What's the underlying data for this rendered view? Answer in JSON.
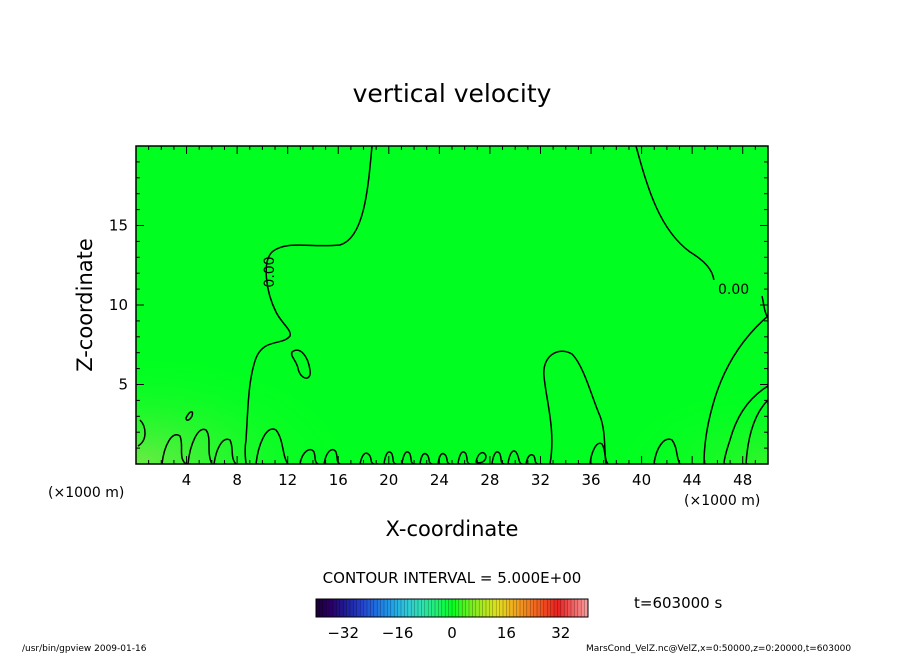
{
  "chart_data": {
    "type": "heatmap",
    "title": "vertical velocity",
    "xlabel": "X-coordinate",
    "ylabel": "Z-coordinate",
    "x_unit": "(×1000 m)",
    "y_unit": "(×1000 m)",
    "xlim": [
      0,
      50
    ],
    "ylim": [
      0,
      20
    ],
    "x_ticks": [
      4,
      8,
      12,
      16,
      20,
      24,
      28,
      32,
      36,
      40,
      44,
      48
    ],
    "y_ticks": [
      5,
      10,
      15
    ],
    "contour_interval_label": "CONTOUR INTERVAL = 5.000E+00",
    "contour_labels": [
      "0.00",
      "0.00"
    ],
    "field_value_approx": 0,
    "field_color": "#00ff20",
    "colorbar": {
      "min": -40,
      "max": 40,
      "ticks": [
        -32,
        -16,
        0,
        16,
        32
      ],
      "colors": [
        "#1a0033",
        "#2a0066",
        "#1f1f99",
        "#2340cc",
        "#2070e0",
        "#1fa0e8",
        "#30c8d8",
        "#30e0b0",
        "#20f070",
        "#00ff20",
        "#60f020",
        "#a8e820",
        "#e0e020",
        "#f0b020",
        "#f08020",
        "#f05020",
        "#e82020",
        "#f06060",
        "#f8a0a0"
      ]
    },
    "time_label": "t=603000 s",
    "footer_left": "/usr/bin/gpview   2009-01-16",
    "footer_right": "MarsCond_VelZ.nc@VelZ,x=0:50000,z=0:20000,t=603000"
  }
}
